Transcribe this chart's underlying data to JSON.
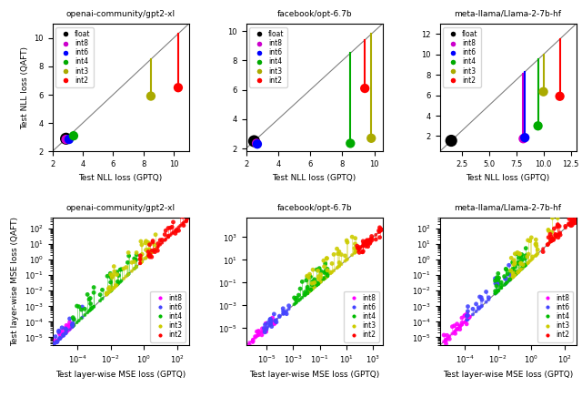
{
  "titles_top": [
    "openai-community/gpt2-xl",
    "facebook/opt-6.7b",
    "meta-llama/Llama-2-7b-hf"
  ],
  "xlabel_top": "Test NLL loss (GPTQ)",
  "ylabel_top": "Test NLL loss (QAFT)",
  "xlabel_bot": "Test layer-wise MSE loss (GPTQ)",
  "ylabel_bot": "Test layer-wise MSE loss (QAFT)",
  "legend_labels_top": [
    "float",
    "int8",
    "int6",
    "int4",
    "int3",
    "int2"
  ],
  "legend_labels_bot": [
    "int8",
    "int6",
    "int4",
    "int3",
    "int2"
  ],
  "colors_top": {
    "float": "#000000",
    "int8": "#cc00cc",
    "int6": "#0000ff",
    "int4": "#00aa00",
    "int3": "#aaaa00",
    "int2": "#ff0000"
  },
  "colors_bot": {
    "int8": "#ff00ff",
    "int6": "#4444ff",
    "int4": "#00bb00",
    "int3": "#cccc00",
    "int2": "#ff0000"
  },
  "nll_data": {
    "gpt2xl": {
      "float": {
        "gptq": 2.9,
        "qaft": 2.9
      },
      "int8": {
        "gptq": 2.9,
        "qaft": 2.85
      },
      "int6": {
        "gptq": 3.1,
        "qaft": 2.85
      },
      "int4": {
        "gptq": 3.4,
        "qaft": 3.1
      },
      "int3": {
        "gptq": 8.5,
        "qaft": 5.9
      },
      "int2": {
        "gptq": 10.3,
        "qaft": 6.5
      }
    },
    "opt67b": {
      "float": {
        "gptq": 2.5,
        "qaft": 2.5
      },
      "int8": {
        "gptq": 2.65,
        "qaft": 2.35
      },
      "int6": {
        "gptq": 2.7,
        "qaft": 2.3
      },
      "int4": {
        "gptq": 8.5,
        "qaft": 2.35
      },
      "int3": {
        "gptq": 9.8,
        "qaft": 2.7
      },
      "int2": {
        "gptq": 9.4,
        "qaft": 6.1
      }
    },
    "llama7b": {
      "float": {
        "gptq": 1.55,
        "qaft": 1.55
      },
      "int8": {
        "gptq": 8.15,
        "qaft": 1.75
      },
      "int6": {
        "gptq": 8.3,
        "qaft": 1.85
      },
      "int4": {
        "gptq": 9.5,
        "qaft": 3.0
      },
      "int3": {
        "gptq": 10.0,
        "qaft": 6.35
      },
      "int2": {
        "gptq": 11.5,
        "qaft": 5.9
      }
    }
  },
  "nll_xlim": {
    "gpt2xl": [
      2.0,
      11.0
    ],
    "opt67b": [
      2.0,
      10.5
    ],
    "llama7b": [
      0.5,
      13.0
    ]
  },
  "nll_ylim": {
    "gpt2xl": [
      2.0,
      11.0
    ],
    "opt67b": [
      1.8,
      10.5
    ],
    "llama7b": [
      0.5,
      13.0
    ]
  },
  "mse_ranges": {
    "gpt2xl": {
      "int8": {
        "gptq_lo": 1e-06,
        "gptq_hi": 5e-05,
        "ratio_lo": 0.8,
        "ratio_hi": 3.0,
        "n": 20
      },
      "int6": {
        "gptq_lo": 3e-06,
        "gptq_hi": 0.0002,
        "ratio_lo": 0.8,
        "ratio_hi": 5.0,
        "n": 20
      },
      "int4": {
        "gptq_lo": 5e-05,
        "gptq_hi": 0.5,
        "ratio_lo": 1.0,
        "ratio_hi": 20.0,
        "n": 32
      },
      "int3": {
        "gptq_lo": 0.005,
        "gptq_hi": 5.0,
        "ratio_lo": 1.0,
        "ratio_hi": 30.0,
        "n": 32
      },
      "int2": {
        "gptq_lo": 0.5,
        "gptq_hi": 500.0,
        "ratio_lo": 0.5,
        "ratio_hi": 5.0,
        "n": 32
      }
    },
    "opt67b": {
      "int8": {
        "gptq_lo": 5e-07,
        "gptq_hi": 5e-05,
        "ratio_lo": 0.5,
        "ratio_hi": 3.0,
        "n": 20
      },
      "int6": {
        "gptq_lo": 5e-06,
        "gptq_hi": 0.001,
        "ratio_lo": 0.5,
        "ratio_hi": 5.0,
        "n": 20
      },
      "int4": {
        "gptq_lo": 0.0005,
        "gptq_hi": 0.5,
        "ratio_lo": 1.0,
        "ratio_hi": 30.0,
        "n": 32
      },
      "int3": {
        "gptq_lo": 0.01,
        "gptq_hi": 50.0,
        "ratio_lo": 1.0,
        "ratio_hi": 50.0,
        "n": 32
      },
      "int2": {
        "gptq_lo": 50.0,
        "gptq_hi": 5000.0,
        "ratio_lo": 0.3,
        "ratio_hi": 3.0,
        "n": 32
      }
    },
    "llama7b": {
      "int8": {
        "gptq_lo": 5e-06,
        "gptq_hi": 0.0002,
        "ratio_lo": 0.5,
        "ratio_hi": 3.0,
        "n": 20
      },
      "int6": {
        "gptq_lo": 0.0001,
        "gptq_hi": 0.05,
        "ratio_lo": 1.0,
        "ratio_hi": 10.0,
        "n": 20
      },
      "int4": {
        "gptq_lo": 0.005,
        "gptq_hi": 0.5,
        "ratio_lo": 1.0,
        "ratio_hi": 20.0,
        "n": 32
      },
      "int3": {
        "gptq_lo": 0.05,
        "gptq_hi": 50.0,
        "ratio_lo": 1.0,
        "ratio_hi": 30.0,
        "n": 32
      },
      "int2": {
        "gptq_lo": 5.0,
        "gptq_hi": 500.0,
        "ratio_lo": 0.5,
        "ratio_hi": 5.0,
        "n": 32
      }
    }
  },
  "mse_xlim": {
    "gpt2xl": [
      3e-06,
      500.0
    ],
    "opt67b": [
      3e-07,
      5000.0
    ],
    "llama7b": [
      3e-06,
      500.0
    ]
  },
  "mse_ylim": {
    "gpt2xl": [
      3e-06,
      500.0
    ],
    "opt67b": [
      3e-07,
      50000.0
    ],
    "llama7b": [
      3e-06,
      500.0
    ]
  }
}
